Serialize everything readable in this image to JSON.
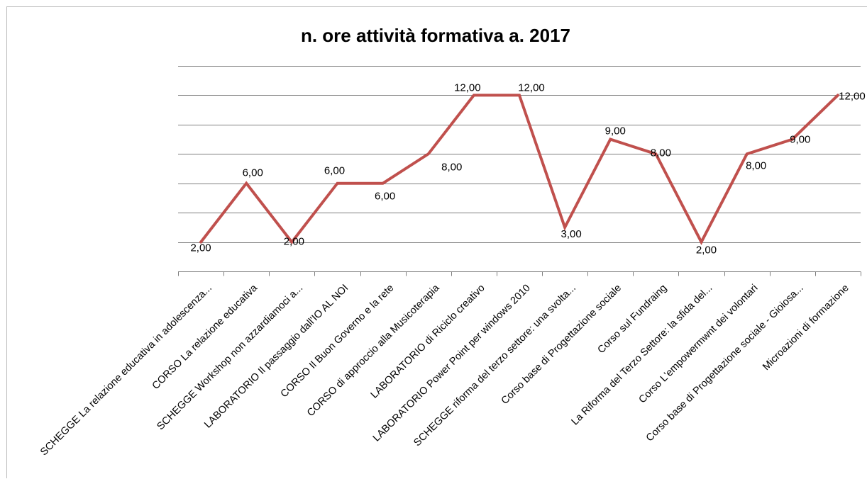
{
  "chart_data": {
    "type": "line",
    "title": "n. ore attività formativa a. 2017",
    "xlabel": "",
    "ylabel": "",
    "ylim": [
      0,
      14
    ],
    "grid": true,
    "legend": "none",
    "categories": [
      "SCHEGGE La relazione educativa in adolescenza...",
      "CORSO La relazione educativa",
      "SCHEGGE Workshop non azzardiamoci a...",
      "LABORATORIO Il passaggio dall'IO AL NOI",
      "CORSO Il Buon Governo e la rete",
      "CORSO di approccio alla Musicoterapia",
      "LABORATORIO di Riciclo creativo",
      "LABORATORIO Power Point per windows 2010",
      "SCHEGGE riforma del terzo settore: una svolta...",
      "Corso base di Progettazione sociale",
      "Corso sul Fundraing",
      "La Riforma del Terzo Settore: la sfida del...",
      "Corso L'empowermwnt dei volontari",
      "Corso base di Progettazione sociale - Gioiosa...",
      "Microazioni di formazione"
    ],
    "series": [
      {
        "values": [
          2,
          6,
          2,
          6,
          6,
          8,
          12,
          12,
          3,
          9,
          8,
          2,
          8,
          9,
          12
        ],
        "labels": [
          "2,00",
          "6,00",
          "2,00",
          "6,00",
          "6,00",
          "8,00",
          "12,00",
          "12,00",
          "3,00",
          "9,00",
          "8,00",
          "2,00",
          "8,00",
          "9,00",
          "12,00"
        ],
        "color": "#c0504d"
      }
    ]
  }
}
